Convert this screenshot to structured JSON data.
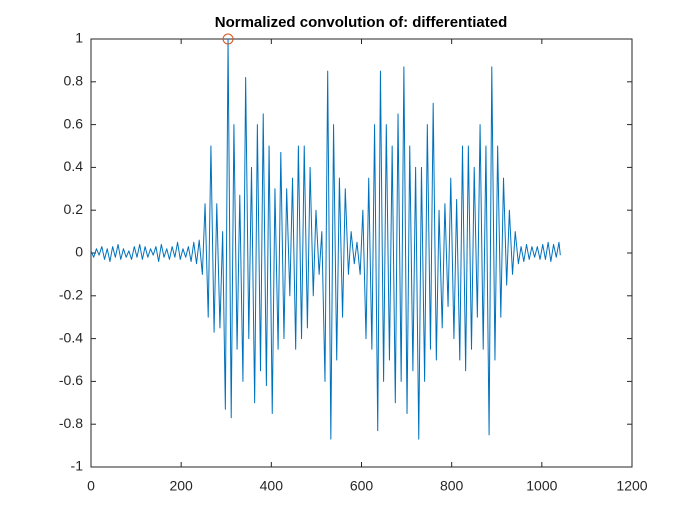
{
  "chart_data": {
    "type": "line",
    "title": "Normalized convolution of: differentiated",
    "xlim": [
      0,
      1200
    ],
    "xticks": [
      0,
      200,
      400,
      600,
      800,
      1000,
      1200
    ],
    "ylim": [
      -1,
      1
    ],
    "yticks": [
      -1,
      -0.8,
      -0.6,
      -0.4,
      -0.2,
      0,
      0.2,
      0.4,
      0.6,
      0.8,
      1
    ],
    "grid": false,
    "series": [
      {
        "color": "#0072bd",
        "x": [
          0,
          6,
          12,
          18,
          24,
          30,
          36,
          42,
          48,
          54,
          60,
          66,
          72,
          78,
          84,
          90,
          96,
          102,
          108,
          114,
          120,
          126,
          132,
          138,
          144,
          150,
          156,
          162,
          168,
          174,
          180,
          186,
          192,
          198,
          204,
          210,
          216,
          222,
          228,
          234,
          240,
          247,
          253,
          260,
          266,
          273,
          279,
          286,
          292,
          298,
          304,
          311,
          317,
          324,
          330,
          337,
          343,
          350,
          356,
          363,
          369,
          376,
          382,
          389,
          395,
          402,
          408,
          415,
          421,
          428,
          434,
          441,
          447,
          454,
          460,
          467,
          473,
          480,
          486,
          493,
          499,
          506,
          512,
          519,
          525,
          532,
          538,
          545,
          551,
          558,
          564,
          571,
          577,
          584,
          590,
          597,
          603,
          610,
          616,
          623,
          629,
          636,
          642,
          649,
          655,
          662,
          668,
          675,
          681,
          688,
          694,
          701,
          707,
          714,
          720,
          727,
          733,
          740,
          746,
          753,
          759,
          766,
          772,
          779,
          785,
          792,
          798,
          805,
          811,
          818,
          824,
          831,
          837,
          844,
          850,
          857,
          863,
          870,
          876,
          883,
          889,
          896,
          902,
          909,
          915,
          922,
          928,
          935,
          941,
          948,
          954,
          960,
          966,
          972,
          978,
          984,
          990,
          996,
          1002,
          1008,
          1014,
          1020,
          1026,
          1032,
          1038,
          1041
        ],
        "values": [
          0.01,
          -0.02,
          0.02,
          -0.01,
          0.03,
          -0.03,
          0.02,
          -0.04,
          0.03,
          -0.02,
          0.04,
          -0.03,
          0.02,
          -0.02,
          0.01,
          -0.03,
          0.03,
          -0.02,
          0.04,
          -0.03,
          0.03,
          -0.02,
          0.02,
          -0.01,
          0.03,
          -0.04,
          0.04,
          -0.02,
          0.02,
          -0.03,
          0.03,
          -0.02,
          0.05,
          -0.03,
          0.02,
          -0.02,
          0.03,
          -0.04,
          0.05,
          -0.05,
          0.06,
          -0.1,
          0.23,
          -0.3,
          0.5,
          -0.37,
          0.23,
          -0.35,
          0.1,
          -0.73,
          1,
          -0.77,
          0.6,
          -0.45,
          0.27,
          -0.6,
          0.82,
          -0.4,
          0.4,
          -0.7,
          0.6,
          -0.55,
          0.65,
          -0.62,
          0.5,
          -0.75,
          0.3,
          -0.45,
          0.47,
          -0.4,
          0.3,
          -0.2,
          0.35,
          -0.45,
          0.5,
          -0.4,
          0.5,
          -0.35,
          0.4,
          -0.2,
          0.2,
          -0.1,
          0.1,
          -0.6,
          0.85,
          -0.87,
          0.6,
          -0.5,
          0.35,
          -0.3,
          0.3,
          -0.1,
          0.1,
          -0.05,
          0.05,
          -0.1,
          0.2,
          -0.4,
          0.35,
          -0.45,
          0.6,
          -0.83,
          0.85,
          -0.6,
          0.6,
          -0.5,
          0.5,
          -0.7,
          0.65,
          -0.6,
          0.87,
          -0.75,
          0.5,
          -0.55,
          0.4,
          -0.87,
          0.4,
          -0.6,
          0.6,
          -0.45,
          0.7,
          -0.5,
          0.2,
          -0.35,
          0.23,
          -0.25,
          0.35,
          -0.4,
          0.25,
          -0.5,
          0.5,
          -0.55,
          0.5,
          -0.45,
          0.4,
          -0.3,
          0.6,
          -0.45,
          0.5,
          -0.85,
          0.87,
          -0.5,
          0.5,
          -0.3,
          0.35,
          -0.15,
          0.2,
          -0.1,
          0.1,
          -0.05,
          0.03,
          -0.04,
          0.04,
          -0.03,
          0.03,
          -0.02,
          0.03,
          -0.03,
          0.04,
          -0.03,
          0.05,
          -0.04,
          0.04,
          -0.02,
          0.05,
          -0.01
        ]
      },
      {
        "color": "#d95319",
        "marker": "circle",
        "x": [
          304
        ],
        "values": [
          1
        ]
      }
    ]
  }
}
